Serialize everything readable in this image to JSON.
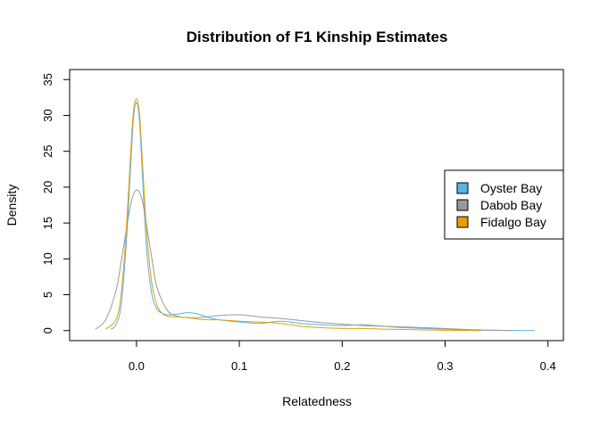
{
  "chart_data": {
    "type": "line",
    "title": "Distribution of F1 Kinship Estimates",
    "xlabel": "Relatedness",
    "ylabel": "Density",
    "xlim": [
      -0.065,
      0.415
    ],
    "ylim": [
      -1.4,
      36.4
    ],
    "xticks": [
      0.0,
      0.1,
      0.2,
      0.3,
      0.4
    ],
    "xtick_labels": [
      "0.0",
      "0.1",
      "0.2",
      "0.3",
      "0.4"
    ],
    "yticks": [
      0,
      5,
      10,
      15,
      20,
      25,
      30,
      35
    ],
    "ytick_labels": [
      "0",
      "5",
      "10",
      "15",
      "20",
      "25",
      "30",
      "35"
    ],
    "grid": false,
    "legend_position": "right",
    "series": [
      {
        "name": "Oyster Bay",
        "color": "#56B4E9",
        "x": [
          -0.025,
          -0.02,
          -0.015,
          -0.01,
          -0.006,
          -0.003,
          0.0,
          0.003,
          0.006,
          0.01,
          0.015,
          0.02,
          0.025,
          0.03,
          0.04,
          0.05,
          0.06,
          0.07,
          0.08,
          0.1,
          0.12,
          0.14,
          0.16,
          0.18,
          0.2,
          0.22,
          0.24,
          0.26,
          0.28,
          0.3,
          0.32,
          0.34,
          0.36,
          0.387
        ],
        "y": [
          0.2,
          0.8,
          3.5,
          12.0,
          22.0,
          29.5,
          31.8,
          29.0,
          21.0,
          11.0,
          5.0,
          3.0,
          2.4,
          2.2,
          2.3,
          2.5,
          2.3,
          1.8,
          1.5,
          1.2,
          1.0,
          1.3,
          1.0,
          0.8,
          0.7,
          0.8,
          0.6,
          0.4,
          0.3,
          0.2,
          0.1,
          0.05,
          0.02,
          0.0
        ]
      },
      {
        "name": "Dabob Bay",
        "color": "#999999",
        "x": [
          -0.04,
          -0.03,
          -0.02,
          -0.015,
          -0.01,
          -0.005,
          0.0,
          0.005,
          0.01,
          0.015,
          0.02,
          0.03,
          0.04,
          0.05,
          0.06,
          0.08,
          0.1,
          0.12,
          0.14,
          0.16,
          0.18,
          0.2,
          0.22,
          0.24,
          0.26,
          0.28,
          0.3,
          0.32,
          0.34,
          0.36,
          0.365
        ],
        "y": [
          0.2,
          1.5,
          5.5,
          9.5,
          14.0,
          18.0,
          19.6,
          18.5,
          14.5,
          10.0,
          6.0,
          2.8,
          2.0,
          1.8,
          1.8,
          2.1,
          2.2,
          1.9,
          1.7,
          1.4,
          1.1,
          0.9,
          0.7,
          0.6,
          0.5,
          0.4,
          0.3,
          0.15,
          0.08,
          0.02,
          0.0
        ]
      },
      {
        "name": "Fidalgo Bay",
        "color": "#E69F00",
        "x": [
          -0.03,
          -0.02,
          -0.015,
          -0.01,
          -0.006,
          -0.003,
          0.0,
          0.003,
          0.006,
          0.01,
          0.015,
          0.02,
          0.025,
          0.03,
          0.04,
          0.05,
          0.06,
          0.07,
          0.08,
          0.1,
          0.12,
          0.14,
          0.16,
          0.18,
          0.2,
          0.22,
          0.24,
          0.26,
          0.28,
          0.3,
          0.32,
          0.335
        ],
        "y": [
          0.2,
          1.5,
          5.0,
          14.0,
          24.0,
          30.5,
          32.3,
          30.0,
          23.0,
          13.5,
          6.5,
          3.5,
          2.4,
          2.0,
          1.9,
          1.8,
          1.6,
          1.5,
          1.5,
          1.3,
          1.2,
          1.0,
          0.6,
          0.4,
          0.3,
          0.3,
          0.2,
          0.15,
          0.1,
          0.05,
          0.02,
          0.0
        ]
      }
    ]
  }
}
